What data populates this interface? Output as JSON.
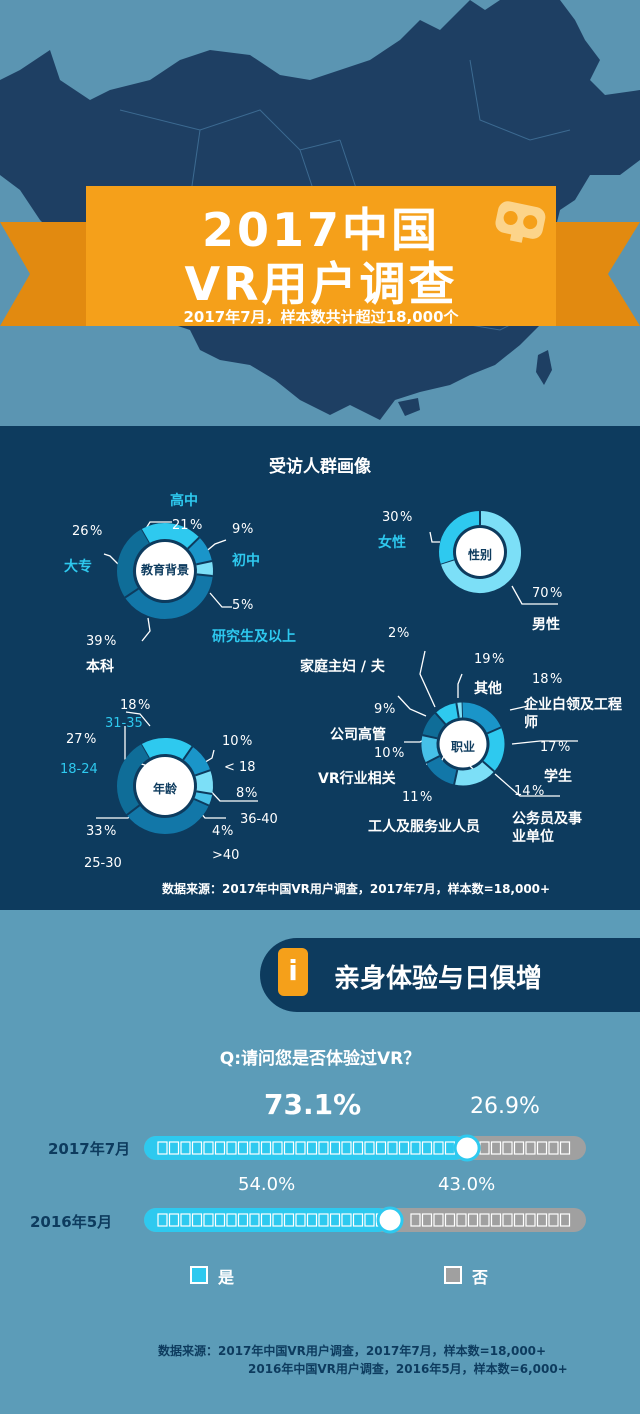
{
  "header": {
    "title_line1": "2017中国",
    "title_line2": "VR用户调查",
    "subtitle": "2017年7月，样本数共计超过18,000个",
    "icon": "vr-headset-icon",
    "colors": {
      "banner": "#f5a01a",
      "map": "#1e3f63",
      "background": "#5b95b2"
    }
  },
  "profile": {
    "title": "受访人群画像",
    "source": "数据来源：2017年中国VR用户调查，2017年7月，样本数=18,000+"
  },
  "experience": {
    "section_number": "i",
    "section_title": "亲身体验与日俱增",
    "question": "Q:请问您是否体验过VR？",
    "legend_yes": "是",
    "legend_no": "否",
    "source_line1": "数据来源：2017年中国VR用户调查，2017年7月，样本数=18,000+",
    "source_line2": "2016年中国VR用户调查，2016年5月，样本数=6,000+"
  },
  "chart_data": [
    {
      "type": "pie",
      "title": "教育背景",
      "slices": [
        {
          "label": "高中",
          "value": 21
        },
        {
          "label": "初中",
          "value": 9
        },
        {
          "label": "研究生及以上",
          "value": 5
        },
        {
          "label": "本科",
          "value": 39
        },
        {
          "label": "大专",
          "value": 26
        }
      ]
    },
    {
      "type": "pie",
      "title": "性别",
      "slices": [
        {
          "label": "女性",
          "value": 30
        },
        {
          "label": "男性",
          "value": 70
        }
      ]
    },
    {
      "type": "pie",
      "title": "年龄",
      "slices": [
        {
          "label": "31-35",
          "value": 18
        },
        {
          "label": "< 18",
          "value": 10
        },
        {
          "label": "36-40",
          "value": 8
        },
        {
          "label": ">40",
          "value": 4
        },
        {
          "label": "25-30",
          "value": 33
        },
        {
          "label": "18-24",
          "value": 27
        }
      ]
    },
    {
      "type": "pie",
      "title": "职业",
      "slices": [
        {
          "label": "其他",
          "value": 19
        },
        {
          "label": "企业白领及工程师",
          "value": 18
        },
        {
          "label": "学生",
          "value": 17
        },
        {
          "label": "公务员及事业单位",
          "value": 14
        },
        {
          "label": "工人及服务业人员",
          "value": 11
        },
        {
          "label": "VR行业相关",
          "value": 10
        },
        {
          "label": "公司高管",
          "value": 9
        },
        {
          "label": "家庭主妇 / 夫",
          "value": 2
        }
      ]
    },
    {
      "type": "bar",
      "orientation": "horizontal",
      "stacked": true,
      "title": "Q:请问您是否体验过VR？",
      "categories": [
        "2017年7月",
        "2016年5月"
      ],
      "series": [
        {
          "name": "是",
          "values": [
            73.1,
            54.0
          ],
          "color": "#2ec9ef"
        },
        {
          "name": "否",
          "values": [
            26.9,
            43.0
          ],
          "color": "#a0a0a0"
        }
      ],
      "value_labels": [
        [
          "73.1%",
          "26.9%"
        ],
        [
          "54.0%",
          "43.0%"
        ]
      ]
    }
  ]
}
